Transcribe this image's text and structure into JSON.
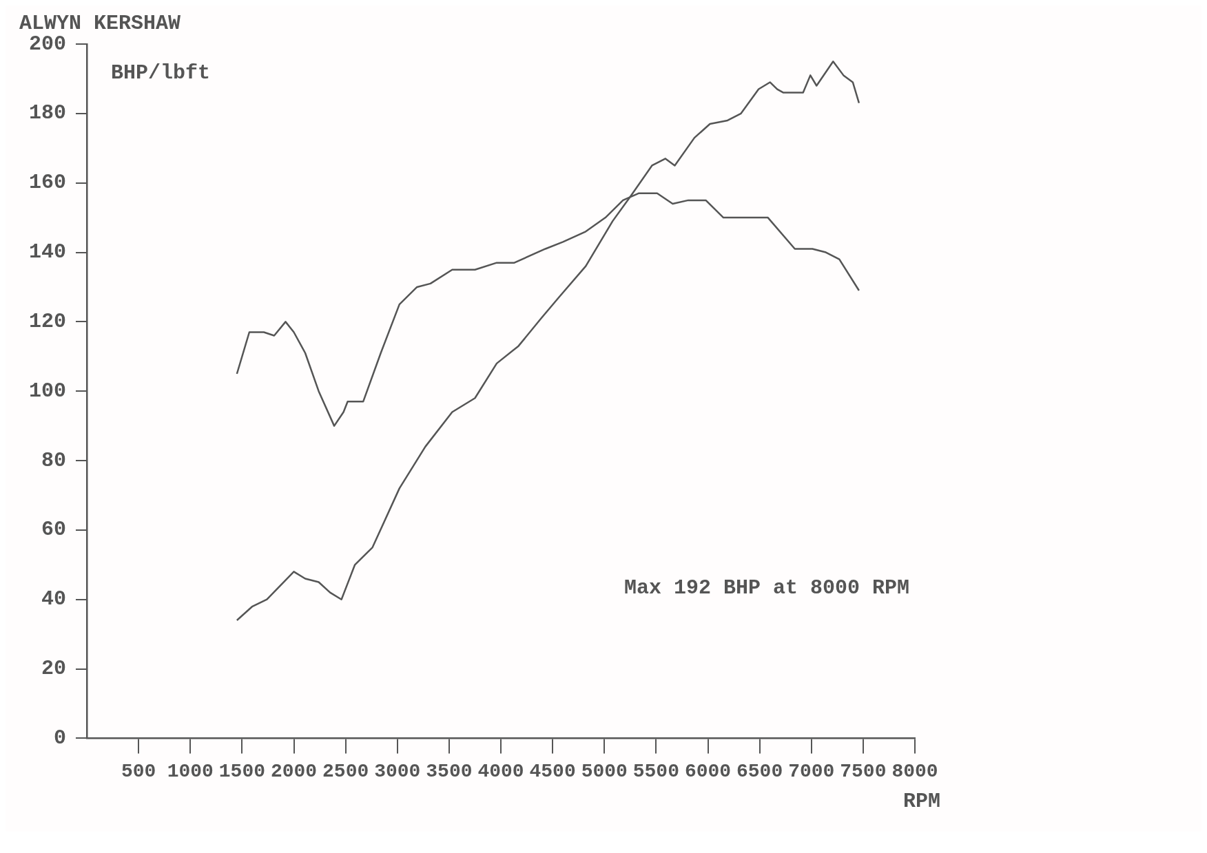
{
  "chart_data": {
    "type": "line",
    "title": "ALWYN KERSHAW",
    "xlabel": "RPM",
    "ylabel": "BHP/lbft",
    "annotations": [
      "Max 192 BHP at 8000 RPM"
    ],
    "xlim": [
      0,
      8000
    ],
    "xticks": [
      500,
      1000,
      1500,
      2000,
      2500,
      3000,
      3500,
      4000,
      4500,
      5000,
      5500,
      6000,
      6500,
      7000,
      7500,
      8000
    ],
    "ylim": [
      0,
      200
    ],
    "yticks": [
      0,
      20,
      40,
      60,
      80,
      100,
      120,
      140,
      160,
      180,
      200
    ],
    "grid": false,
    "legend": false,
    "marker": "none",
    "line_style": "solid",
    "series": [
      {
        "color": "#555555",
        "x": [
          1450,
          1570,
          1710,
          1810,
          1920,
          2000,
          2110,
          2240,
          2390,
          2480,
          2520,
          2670,
          2840,
          3020,
          3190,
          3320,
          3530,
          3750,
          3960,
          4130,
          4430,
          4600,
          4820,
          5010,
          5180,
          5330,
          5510,
          5660,
          5810,
          5980,
          6150,
          6320,
          6580,
          6840,
          7010,
          7140,
          7270,
          7460
        ],
        "values": [
          105,
          117,
          117,
          116,
          120,
          117,
          111,
          100,
          90,
          94,
          97,
          97,
          111,
          125,
          130,
          131,
          135,
          135,
          137,
          137,
          141,
          143,
          146,
          150,
          155,
          157,
          157,
          154,
          155,
          155,
          150,
          150,
          150,
          141,
          141,
          140,
          138,
          129
        ]
      },
      {
        "color": "#555555",
        "x": [
          1450,
          1600,
          1740,
          2000,
          2110,
          2240,
          2350,
          2460,
          2590,
          2760,
          3020,
          3270,
          3530,
          3750,
          3960,
          4170,
          4390,
          4560,
          4820,
          5080,
          5250,
          5460,
          5590,
          5680,
          5870,
          6020,
          6190,
          6320,
          6490,
          6600,
          6670,
          6730,
          6920,
          6990,
          7050,
          7210,
          7310,
          7400,
          7460
        ],
        "values": [
          34,
          38,
          40,
          48,
          46,
          45,
          42,
          40,
          50,
          55,
          72,
          84,
          94,
          98,
          108,
          113,
          121,
          127,
          136,
          149,
          156,
          165,
          167,
          165,
          173,
          177,
          178,
          180,
          187,
          189,
          187,
          186,
          186,
          191,
          188,
          195,
          191,
          189,
          183
        ]
      }
    ]
  }
}
